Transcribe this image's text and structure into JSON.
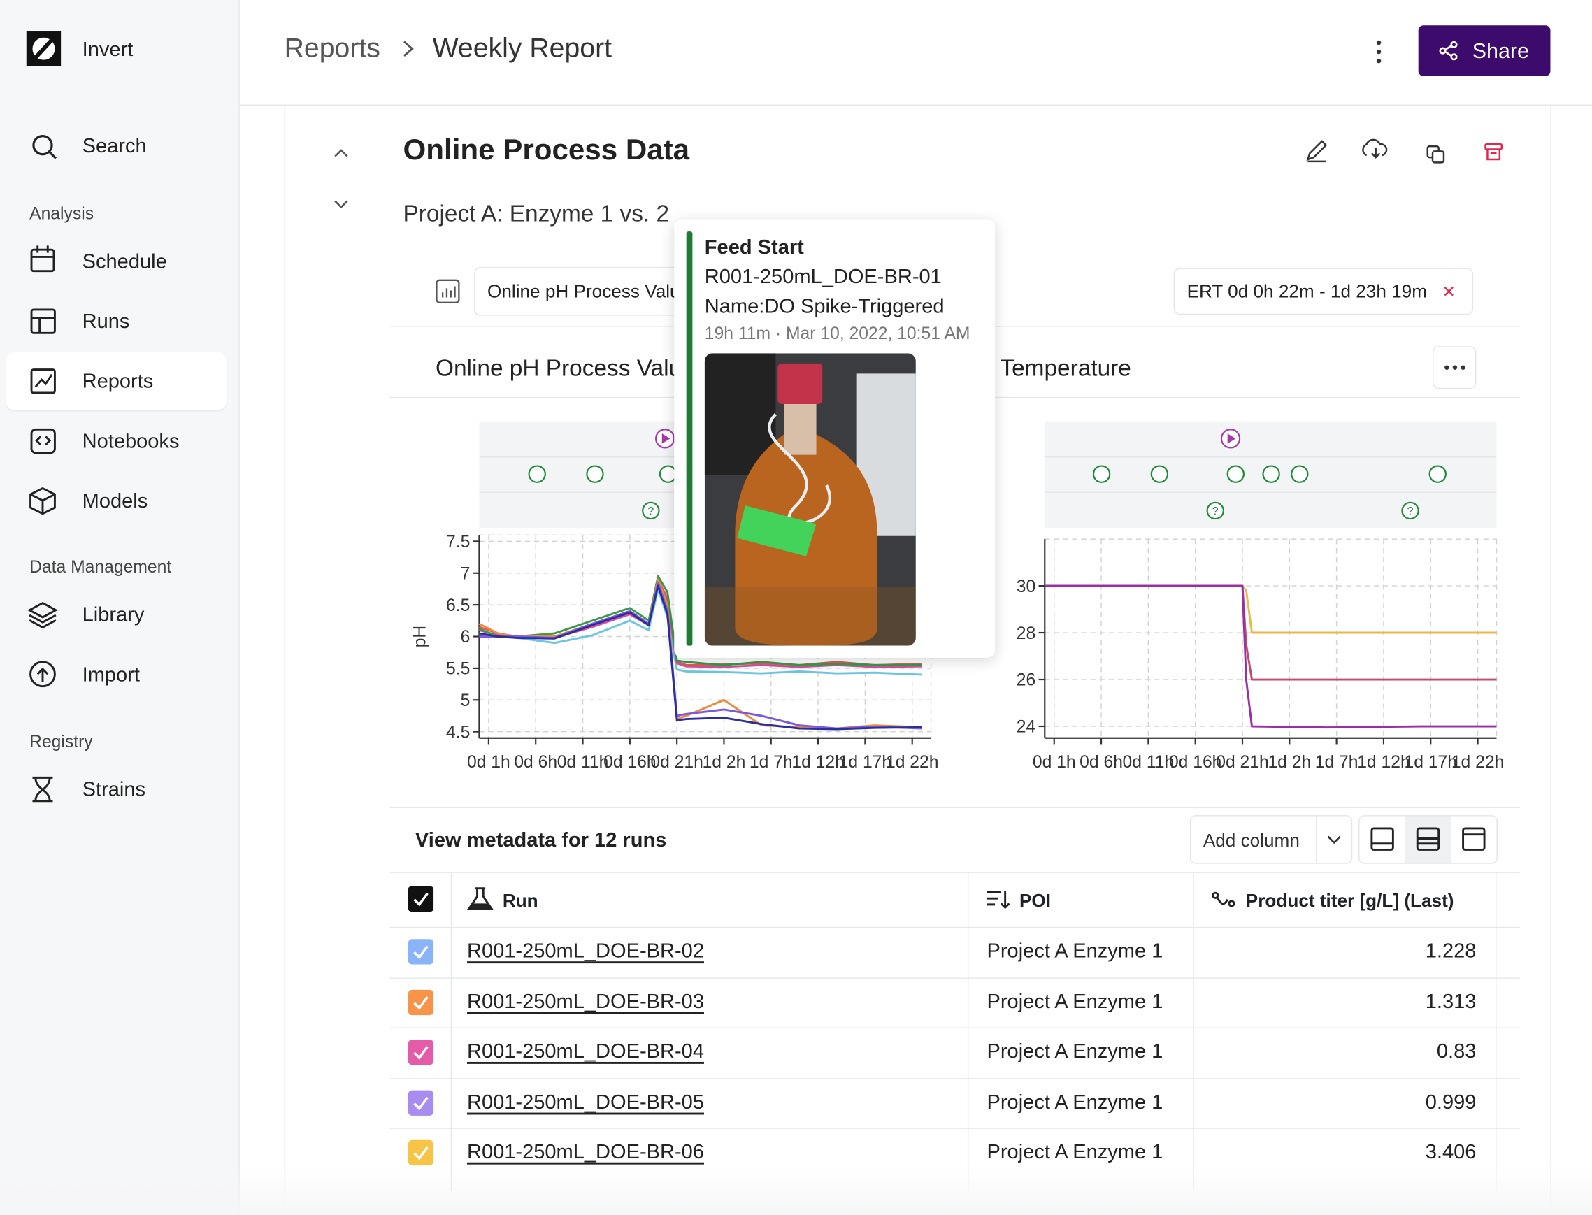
{
  "sidebar": {
    "brand": "Invert",
    "search": "Search",
    "sections": [
      {
        "heading": "Analysis",
        "items": [
          "Schedule",
          "Runs",
          "Reports",
          "Notebooks",
          "Models"
        ]
      },
      {
        "heading": "Data Management",
        "items": [
          "Library",
          "Import"
        ]
      },
      {
        "heading": "Registry",
        "items": [
          "Strains"
        ]
      }
    ]
  },
  "header": {
    "breadcrumb": [
      "Reports",
      "Weekly Report"
    ],
    "share": "Share"
  },
  "panel": {
    "title": "Online Process Data",
    "subtitle": "Project A: Enzyme 1 vs. 2",
    "select": "Online pH Process Values",
    "range": "ERT 0d 0h 22m - 1d 23h 19m"
  },
  "tooltip": {
    "title": "Feed Start",
    "run": "R001-250mL_DOE-BR-01",
    "name": "Name:DO Spike-Triggered",
    "time": "19h 11m · Mar 10, 2022, 10:51 AM"
  },
  "chart_data": [
    {
      "type": "line",
      "title": "Online pH Process Values",
      "ylabel": "pH",
      "grid": true,
      "x": [
        0,
        2,
        4,
        8,
        12,
        16,
        18,
        19,
        20,
        21,
        22,
        26,
        30,
        34,
        38,
        42,
        47
      ],
      "xlim": [
        0,
        48
      ],
      "xticks": [
        {
          "value": 1,
          "label": "0d 1h"
        },
        {
          "value": 6,
          "label": "0d 6h"
        },
        {
          "value": 11,
          "label": "0d 11h"
        },
        {
          "value": 16,
          "label": "0d 16h"
        },
        {
          "value": 21,
          "label": "0d 21h"
        },
        {
          "value": 26,
          "label": "1d 2h"
        },
        {
          "value": 31,
          "label": "1d 7h"
        },
        {
          "value": 36,
          "label": "1d 12h"
        },
        {
          "value": 41,
          "label": "1d 17h"
        },
        {
          "value": 46,
          "label": "1d 22h"
        }
      ],
      "ylim": [
        4.4,
        7.6
      ],
      "yticks": [
        4.5,
        5,
        5.5,
        6,
        6.5,
        7,
        7.5
      ],
      "series": [
        {
          "color": "#6cc6e0",
          "values": [
            6.05,
            6.0,
            5.98,
            5.9,
            6.02,
            6.25,
            6.1,
            6.75,
            6.3,
            5.48,
            5.45,
            5.44,
            5.42,
            5.45,
            5.42,
            5.43,
            5.4
          ]
        },
        {
          "color": "#e05a5a",
          "values": [
            6.15,
            6.05,
            6.0,
            6.0,
            6.18,
            6.38,
            6.2,
            6.9,
            6.6,
            5.6,
            5.55,
            5.56,
            5.58,
            5.55,
            5.6,
            5.55,
            5.57
          ]
        },
        {
          "color": "#d6509e",
          "values": [
            6.1,
            6.02,
            6.0,
            5.98,
            6.15,
            6.35,
            6.18,
            6.85,
            6.55,
            5.58,
            5.53,
            5.52,
            5.55,
            5.52,
            5.55,
            5.52,
            5.53
          ]
        },
        {
          "color": "#3a9a4a",
          "values": [
            6.12,
            6.0,
            6.0,
            6.05,
            6.25,
            6.45,
            6.25,
            6.95,
            6.7,
            5.62,
            5.6,
            5.55,
            5.6,
            5.55,
            5.57,
            5.55,
            5.55
          ]
        },
        {
          "color": "#f08a3a",
          "values": [
            6.2,
            6.05,
            6.0,
            6.0,
            6.2,
            6.4,
            6.2,
            6.9,
            6.5,
            4.7,
            4.75,
            5.0,
            4.6,
            4.57,
            4.55,
            4.6,
            4.57
          ]
        },
        {
          "color": "#7a5ae0",
          "values": [
            6.0,
            6.0,
            6.0,
            5.98,
            6.2,
            6.4,
            6.2,
            6.85,
            6.4,
            4.75,
            4.78,
            4.85,
            4.75,
            4.6,
            4.55,
            4.58,
            4.55
          ]
        },
        {
          "color": "#2b2f9e",
          "values": [
            6.05,
            6.0,
            5.98,
            5.97,
            6.18,
            6.38,
            6.18,
            6.8,
            6.35,
            4.68,
            4.7,
            4.72,
            4.62,
            4.55,
            4.54,
            4.56,
            4.57
          ]
        }
      ]
    },
    {
      "type": "line",
      "title": "Temperature",
      "grid": true,
      "x": [
        0,
        10,
        21,
        21.4,
        22,
        30,
        40,
        48
      ],
      "xlim": [
        0,
        48
      ],
      "xticks": [
        {
          "value": 1,
          "label": "0d 1h"
        },
        {
          "value": 6,
          "label": "0d 6h"
        },
        {
          "value": 11,
          "label": "0d 11h"
        },
        {
          "value": 16,
          "label": "0d 16h"
        },
        {
          "value": 21,
          "label": "0d 21h"
        },
        {
          "value": 26,
          "label": "1d 2h"
        },
        {
          "value": 31,
          "label": "1d 7h"
        },
        {
          "value": 36,
          "label": "1d 12h"
        },
        {
          "value": 41,
          "label": "1d 17h"
        },
        {
          "value": 46,
          "label": "1d 22h"
        }
      ],
      "ylim": [
        23.5,
        32
      ],
      "yticks": [
        24,
        26,
        28,
        30
      ],
      "series": [
        {
          "color": "#e8b84a",
          "values": [
            30,
            30,
            30,
            29.8,
            28.0,
            28.0,
            28.0,
            28.0
          ]
        },
        {
          "color": "#c24a6a",
          "values": [
            30,
            30,
            30,
            27.5,
            26.0,
            26.0,
            26.0,
            26.0
          ]
        },
        {
          "color": "#9a2ea8",
          "values": [
            30,
            30,
            30,
            26.0,
            24.0,
            23.95,
            24.0,
            24.0
          ]
        }
      ]
    }
  ],
  "table": {
    "title": "View metadata for 12 runs",
    "add_column": "Add column",
    "columns": [
      "Run",
      "POI",
      "Product titer [g/L] (Last)"
    ],
    "rows": [
      {
        "color": "#8ab4f8",
        "run": "R001-250mL_DOE-BR-02",
        "poi": "Project A Enzyme 1",
        "titer": "1.228"
      },
      {
        "color": "#f7944a",
        "run": "R001-250mL_DOE-BR-03",
        "poi": "Project A Enzyme 1",
        "titer": "1.313"
      },
      {
        "color": "#e45ca8",
        "run": "R001-250mL_DOE-BR-04",
        "poi": "Project A Enzyme 1",
        "titer": "0.83"
      },
      {
        "color": "#a98cf0",
        "run": "R001-250mL_DOE-BR-05",
        "poi": "Project A Enzyme 1",
        "titer": "0.999"
      },
      {
        "color": "#f8c446",
        "run": "R001-250mL_DOE-BR-06",
        "poi": "Project A Enzyme 1",
        "titer": "3.406"
      }
    ]
  }
}
